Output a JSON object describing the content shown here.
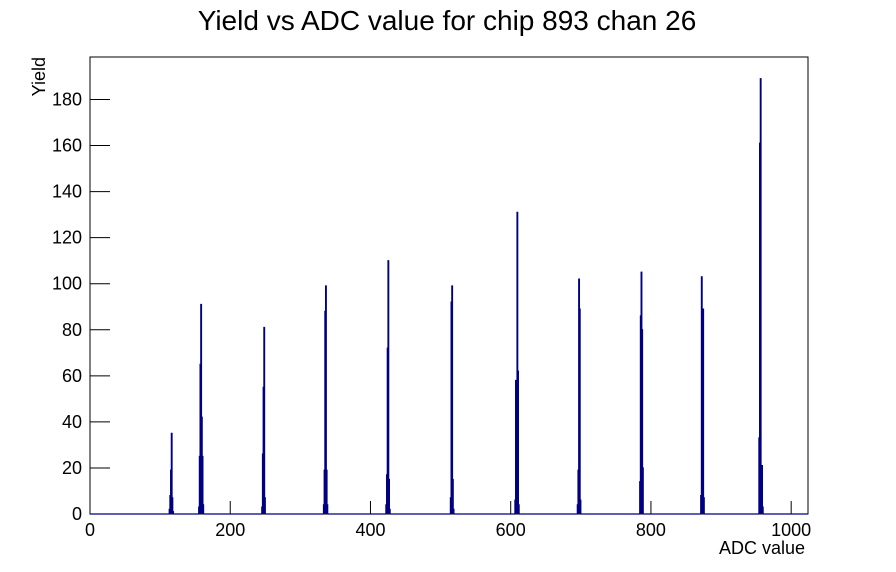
{
  "chart_data": {
    "type": "histogram",
    "title": "Yield vs ADC value for chip 893 chan 26",
    "x_label": "ADC value",
    "y_label": "Yield",
    "color": "#000080",
    "bins": [
      0,
      113,
      114,
      115,
      116,
      117,
      118,
      119,
      155,
      156,
      157,
      158,
      159,
      160,
      161,
      162,
      245,
      246,
      247,
      248,
      249,
      250,
      333,
      334,
      335,
      336,
      337,
      338,
      339,
      422,
      423,
      424,
      425,
      426,
      427,
      428,
      514,
      515,
      516,
      517,
      518,
      519,
      606,
      607,
      608,
      609,
      610,
      611,
      612,
      695,
      696,
      697,
      698,
      699,
      700,
      784,
      785,
      786,
      787,
      788,
      789,
      871,
      872,
      873,
      874,
      875,
      876,
      954,
      955,
      956,
      957,
      958,
      959,
      960,
      1024
    ],
    "values": [
      0,
      2,
      8,
      19,
      35,
      7,
      1,
      0,
      3,
      25,
      65,
      91,
      42,
      25,
      4,
      0,
      3,
      26,
      55,
      81,
      7,
      0,
      4,
      19,
      88,
      99,
      19,
      4,
      0,
      4,
      17,
      72,
      110,
      15,
      2,
      0,
      7,
      92,
      99,
      15,
      2,
      0,
      6,
      58,
      24,
      131,
      62,
      4,
      0,
      4,
      19,
      102,
      89,
      6,
      0,
      14,
      86,
      105,
      80,
      20,
      0,
      8,
      103,
      55,
      89,
      7,
      0,
      33,
      161,
      189,
      9,
      21,
      3,
      0
    ],
    "xlim": [
      0,
      1024
    ],
    "ylim": [
      0,
      198.45
    ],
    "xticks": [
      0,
      200,
      400,
      600,
      800,
      1000
    ],
    "yticks": [
      0,
      20,
      40,
      60,
      80,
      100,
      120,
      140,
      160,
      180
    ]
  }
}
